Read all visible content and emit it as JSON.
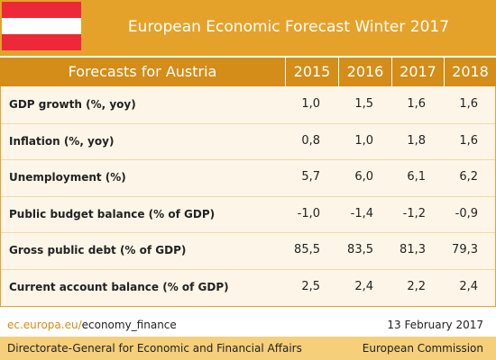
{
  "header": {
    "title": "European Economic Forecast Winter 2017"
  },
  "table": {
    "header": [
      "Forecasts for Austria",
      "2015",
      "2016",
      "2017",
      "2018"
    ],
    "rows": [
      [
        "GDP growth (%, yoy)",
        "1,0",
        "1,5",
        "1,6",
        "1,6"
      ],
      [
        "Inflation (%, yoy)",
        "0,8",
        "1,0",
        "1,8",
        "1,6"
      ],
      [
        "Unemployment (%)",
        "5,7",
        "6,0",
        "6,1",
        "6,2"
      ],
      [
        "Public budget balance (% of GDP)",
        "-1,0",
        "-1,4",
        "-1,2",
        "-0,9"
      ],
      [
        "Gross public debt (% of GDP)",
        "85,5",
        "83,5",
        "81,3",
        "79,3"
      ],
      [
        "Current account balance (% of GDP)",
        "2,5",
        "2,4",
        "2,2",
        "2,4"
      ]
    ]
  },
  "footer": {
    "link_domain": "ec.europa.eu/",
    "link_path": "economy_finance",
    "date": "13 February 2017",
    "department": "Directorate-General for Economic and Financial Affairs",
    "institution": "European Commission"
  }
}
